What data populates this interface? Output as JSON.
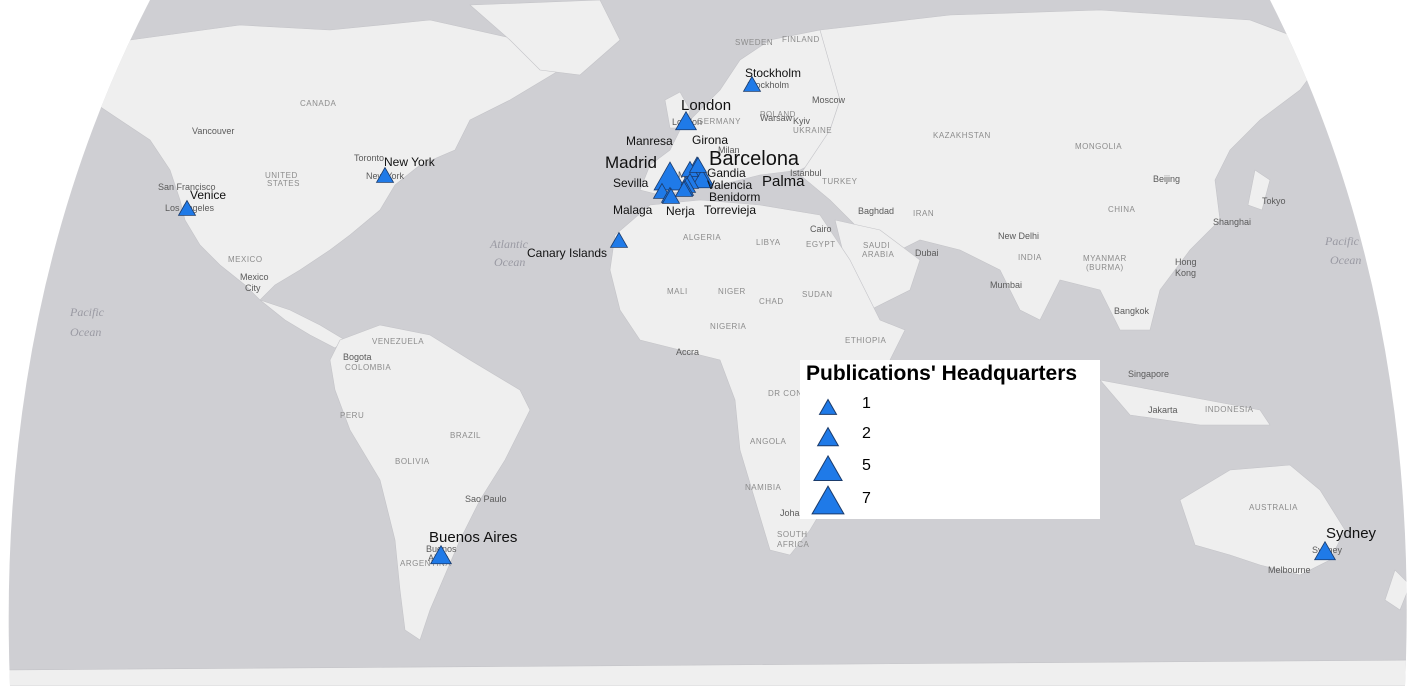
{
  "legend": {
    "title": "Publications' Headquarters",
    "entries": [
      {
        "value": "1",
        "count": 1
      },
      {
        "value": "2",
        "count": 2
      },
      {
        "value": "5",
        "count": 5
      },
      {
        "value": "7",
        "count": 7
      }
    ]
  },
  "symbol_color": "#1f7ae8",
  "land_color": "#efefef",
  "water_color": "#cfcfd3",
  "headquarters": [
    {
      "id": "stockholm",
      "label": "Stockholm",
      "count": 1
    },
    {
      "id": "london",
      "label": "London",
      "count": 2
    },
    {
      "id": "new-york",
      "label": "New York",
      "count": 1
    },
    {
      "id": "venice",
      "label": "Venice",
      "count": 1
    },
    {
      "id": "madrid",
      "label": "Madrid",
      "count": 7
    },
    {
      "id": "barcelona",
      "label": "Barcelona",
      "count": 7
    },
    {
      "id": "manresa",
      "label": "Manresa",
      "count": 1
    },
    {
      "id": "girona",
      "label": "Girona",
      "count": 1
    },
    {
      "id": "gandia",
      "label": "Gandia",
      "count": 1
    },
    {
      "id": "valencia",
      "label": "Valencia",
      "count": 1
    },
    {
      "id": "palma",
      "label": "Palma",
      "count": 2
    },
    {
      "id": "benidorm",
      "label": "Benidorm",
      "count": 1
    },
    {
      "id": "sevilla",
      "label": "Sevilla",
      "count": 1
    },
    {
      "id": "malaga",
      "label": "Malaga",
      "count": 1
    },
    {
      "id": "nerja",
      "label": "Nerja",
      "count": 1
    },
    {
      "id": "torrevieja",
      "label": "Torrevieja",
      "count": 1
    },
    {
      "id": "canary-islands",
      "label": "Canary Islands",
      "count": 1
    },
    {
      "id": "buenos-aires",
      "label": "Buenos Aires",
      "count": 2
    },
    {
      "id": "sydney",
      "label": "Sydney",
      "count": 2
    }
  ],
  "basemap": {
    "oceans": [
      "Atlantic",
      "Ocean",
      "Pacific",
      "Ocean",
      "Pacific",
      "Ocean"
    ],
    "countries": [
      "CANADA",
      "UNITED",
      "STATES",
      "MEXICO",
      "VENEZUELA",
      "COLOMBIA",
      "PERU",
      "BRAZIL",
      "BOLIVIA",
      "ARGENTINA",
      "ALGERIA",
      "LIBYA",
      "EGYPT",
      "MALI",
      "NIGER",
      "CHAD",
      "SUDAN",
      "NIGERIA",
      "ETHIOPIA",
      "DR CONGO",
      "ANGOLA",
      "NAMIBIA",
      "SOUTH",
      "AFRICA",
      "SAUDI",
      "ARABIA",
      "IRAN",
      "TURKEY",
      "UKRAINE",
      "KAZAKHSTAN",
      "MONGOLIA",
      "CHINA",
      "INDIA",
      "MYANMAR",
      "(BURMA)",
      "INDONESIA",
      "AUSTRALIA",
      "SWEDEN",
      "FINLAND",
      "GERMANY",
      "POLAND"
    ],
    "cities": [
      "Vancouver",
      "San Francisco",
      "Los Angeles",
      "Toronto",
      "New York",
      "Mexico",
      "City",
      "Bogota",
      "Sao Paulo",
      "Buenos",
      "Aires",
      "Accra",
      "Cairo",
      "Istanbul",
      "Baghdad",
      "Dubai",
      "Mumbai",
      "New Delhi",
      "Bangkok",
      "Singapore",
      "Jakarta",
      "Hong",
      "Kong",
      "Shanghai",
      "Beijing",
      "Tokyo",
      "Moscow",
      "Warsaw",
      "Kyiv",
      "Milan",
      "Johannesburg",
      "Melbourne",
      "Sydney",
      "Stockholm",
      "Madrid",
      "London"
    ]
  }
}
